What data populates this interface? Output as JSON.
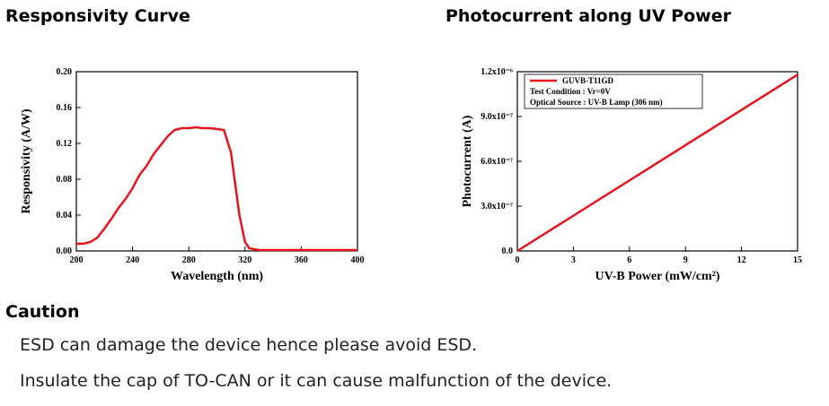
{
  "chart_data": [
    {
      "type": "line",
      "title": "Responsivity Curve",
      "xlabel": "Wavelength (nm)",
      "ylabel": "Responsivity (A/W)",
      "x": [
        200,
        205,
        210,
        215,
        220,
        225,
        230,
        235,
        240,
        245,
        250,
        255,
        260,
        265,
        270,
        275,
        280,
        285,
        290,
        295,
        300,
        305,
        310,
        313,
        316,
        320,
        323,
        330,
        340,
        360,
        380,
        400
      ],
      "series": [
        {
          "color": "#e8141c",
          "values": [
            0.008,
            0.008,
            0.01,
            0.015,
            0.025,
            0.036,
            0.048,
            0.058,
            0.07,
            0.085,
            0.095,
            0.108,
            0.118,
            0.128,
            0.135,
            0.137,
            0.137,
            0.138,
            0.137,
            0.137,
            0.136,
            0.135,
            0.11,
            0.075,
            0.04,
            0.01,
            0.003,
            0.001,
            0.001,
            0.001,
            0.001,
            0.001
          ]
        }
      ],
      "xlim": [
        200,
        400
      ],
      "xticks": [
        200,
        240,
        280,
        320,
        360,
        400
      ],
      "ylim": [
        0,
        0.2
      ],
      "yticks": [
        {
          "value": 0,
          "label": "0.00"
        },
        0.04,
        0.08,
        0.12,
        0.16,
        {
          "value": 0.2,
          "label": "0.20"
        }
      ]
    },
    {
      "type": "line",
      "title": "Photocurrent along UV Power",
      "xlabel": "UV-B Power (mW/cm²)",
      "ylabel": "Photocurrent (A)",
      "x": [
        0,
        15
      ],
      "series": [
        {
          "name": "GUVB-T11GD",
          "color": "#e8141c",
          "values": [
            0,
            1.18e-06
          ]
        }
      ],
      "legend_notes": [
        "Test Condition : Vr=0V",
        "Optical Source : UV-B Lamp (306 nm)"
      ],
      "xlim": [
        0,
        15
      ],
      "xticks": [
        0,
        3,
        6,
        9,
        12,
        15
      ],
      "ylim": [
        0,
        1.2e-06
      ],
      "yticks": [
        {
          "value": 0,
          "label": "0.0"
        },
        {
          "value": 3e-07,
          "label": "3.0x10⁻⁷"
        },
        {
          "value": 6e-07,
          "label": "6.0x10⁻⁷"
        },
        {
          "value": 9e-07,
          "label": "9.0x10⁻⁷"
        },
        {
          "value": 1.2e-06,
          "label": "1.2x10⁻⁶"
        }
      ]
    }
  ],
  "caution": {
    "heading": "Caution",
    "lines": [
      "ESD can damage the device hence please avoid ESD.",
      "Insulate the cap of TO-CAN or it can cause malfunction of the device."
    ]
  }
}
